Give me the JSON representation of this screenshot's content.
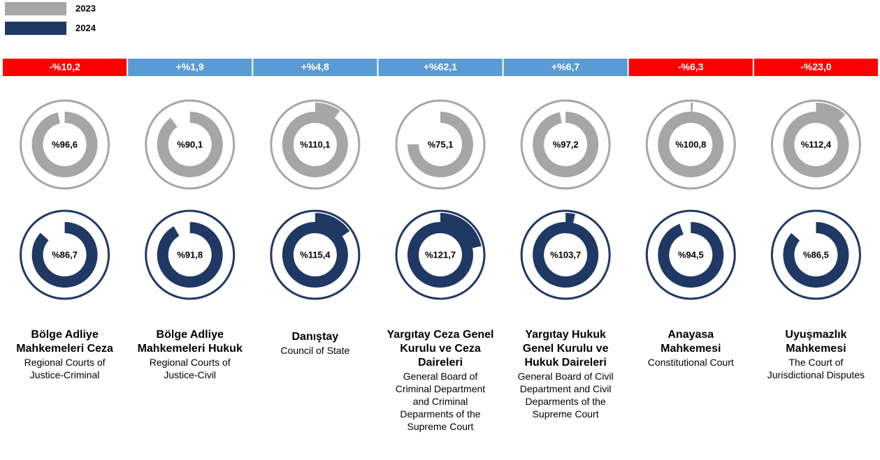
{
  "chart_data": {
    "type": "gauge",
    "categories": [
      "Bölge Adliye Mahkemeleri Ceza",
      "Bölge Adliye Mahkemeleri Hukuk",
      "Danıştay",
      "Yargıtay Ceza Genel Kurulu ve Ceza Daireleri",
      "Yargıtay Hukuk Genel Kurulu ve Hukuk Daireleri",
      "Anayasa Mahkemesi",
      "Uyuşmazlık Mahkemesi"
    ],
    "subtitles": [
      "Regional Courts of Justice-Criminal",
      "Regional Courts of Justice-Civil",
      "Council of State",
      "General Board of Criminal Department and Criminal Deparments of the Supreme Court",
      "General Board of Civil Department and Civil Deparments of the Supreme Court",
      "Constitutional Court",
      "The Court of Jurisdictional Disputes"
    ],
    "series": [
      {
        "name": "2023",
        "color": "#a6a6a6",
        "values": [
          96.6,
          90.1,
          110.1,
          75.1,
          97.2,
          100.8,
          112.4
        ],
        "value_labels": [
          "%96,6",
          "%90,1",
          "%110,1",
          "%75,1",
          "%97,2",
          "%100,8",
          "%112,4"
        ]
      },
      {
        "name": "2024",
        "color": "#1f3864",
        "values": [
          86.7,
          91.8,
          115.4,
          121.7,
          103.7,
          94.5,
          86.5
        ],
        "value_labels": [
          "%86,7",
          "%91,8",
          "%115,4",
          "%121,7",
          "%103,7",
          "%94,5",
          "%86,5"
        ]
      }
    ],
    "change": {
      "values": [
        -10.2,
        1.9,
        4.8,
        62.1,
        6.7,
        -6.3,
        -23.0
      ],
      "value_labels": [
        "-%10,2",
        "+%1,9",
        "+%4,8",
        "+%62,1",
        "+%6,7",
        "-%6,3",
        "-%23,0"
      ],
      "positive_color": "#5b9bd5",
      "negative_color": "#ff0000"
    }
  }
}
